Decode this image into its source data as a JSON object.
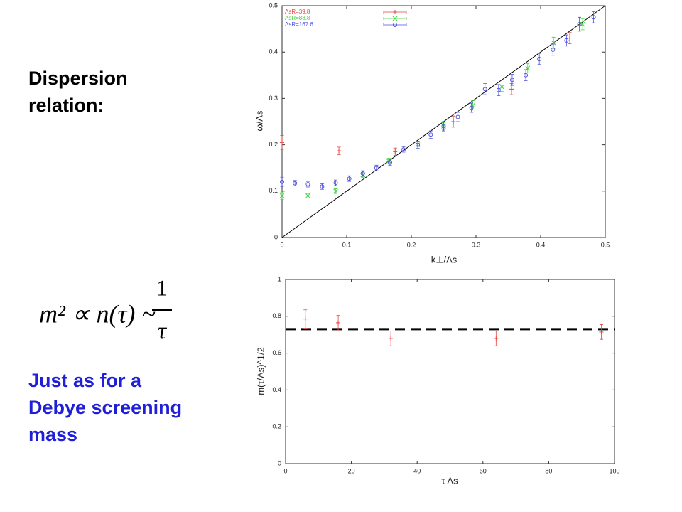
{
  "left_text": {
    "heading": [
      "Dispersion",
      "relation:"
    ],
    "formula": {
      "lhs": "m² ∝ n(τ) ~",
      "numerator": "1",
      "denominator": "τ"
    },
    "note": [
      "Just as for a",
      "Debye screening",
      "mass"
    ]
  },
  "chart_data": [
    {
      "type": "scatter",
      "xlabel": "k⊥/Λs",
      "ylabel": "ω/Λs",
      "xlim": [
        0,
        0.5
      ],
      "ylim": [
        0,
        0.5
      ],
      "xticks": [
        0,
        0.1,
        0.2,
        0.3,
        0.4,
        0.5
      ],
      "yticks": [
        0,
        0.1,
        0.2,
        0.3,
        0.4,
        0.5
      ],
      "diagonal": true,
      "legend": "upper left",
      "series": [
        {
          "name": "ΛsR=39.8",
          "color": "#e8443f",
          "marker": "plus",
          "x": [
            0,
            0.088,
            0.175,
            0.265,
            0.355,
            0.445
          ],
          "values": [
            0.205,
            0.187,
            0.185,
            0.25,
            0.32,
            0.43
          ],
          "errors": [
            0.015,
            0.008,
            0.008,
            0.012,
            0.012,
            0.012
          ]
        },
        {
          "name": "ΛsR=83.8",
          "color": "#3fd43f",
          "marker": "cross",
          "x": [
            0,
            0.04,
            0.083,
            0.125,
            0.165,
            0.21,
            0.25,
            0.295,
            0.34,
            0.38,
            0.42,
            0.465
          ],
          "values": [
            0.09,
            0.09,
            0.1,
            0.135,
            0.165,
            0.2,
            0.24,
            0.285,
            0.325,
            0.365,
            0.42,
            0.46
          ],
          "errors": [
            0.008,
            0.005,
            0.005,
            0.006,
            0.006,
            0.008,
            0.008,
            0.01,
            0.01,
            0.01,
            0.012,
            0.012
          ]
        },
        {
          "name": "ΛsR=167.6",
          "color": "#5050e0",
          "marker": "circle",
          "x": [
            0,
            0.02,
            0.04,
            0.062,
            0.083,
            0.104,
            0.125,
            0.146,
            0.167,
            0.188,
            0.21,
            0.23,
            0.25,
            0.272,
            0.293,
            0.314,
            0.335,
            0.356,
            0.377,
            0.398,
            0.419,
            0.44,
            0.46,
            0.482
          ],
          "values": [
            0.12,
            0.117,
            0.115,
            0.11,
            0.118,
            0.127,
            0.138,
            0.15,
            0.162,
            0.19,
            0.2,
            0.222,
            0.24,
            0.26,
            0.28,
            0.32,
            0.318,
            0.34,
            0.35,
            0.385,
            0.405,
            0.425,
            0.46,
            0.475
          ],
          "errors": [
            0.01,
            0.006,
            0.006,
            0.006,
            0.006,
            0.006,
            0.006,
            0.006,
            0.006,
            0.006,
            0.008,
            0.008,
            0.01,
            0.01,
            0.01,
            0.012,
            0.012,
            0.012,
            0.012,
            0.012,
            0.012,
            0.012,
            0.015,
            0.012
          ]
        }
      ]
    },
    {
      "type": "scatter",
      "xlabel": "τ Λs",
      "ylabel": "m(τ/Λs)^1/2",
      "xlim": [
        0,
        100
      ],
      "ylim": [
        0,
        1
      ],
      "xticks": [
        0,
        20,
        40,
        60,
        80,
        100
      ],
      "yticks": [
        0,
        0.2,
        0.4,
        0.6,
        0.8,
        1
      ],
      "hline": 0.73,
      "series": [
        {
          "color": "#e8443f",
          "marker": "plus",
          "x": [
            6,
            16,
            32,
            64,
            96
          ],
          "values": [
            0.785,
            0.765,
            0.68,
            0.68,
            0.715
          ],
          "errors": [
            0.05,
            0.04,
            0.04,
            0.04,
            0.04
          ]
        }
      ]
    }
  ]
}
